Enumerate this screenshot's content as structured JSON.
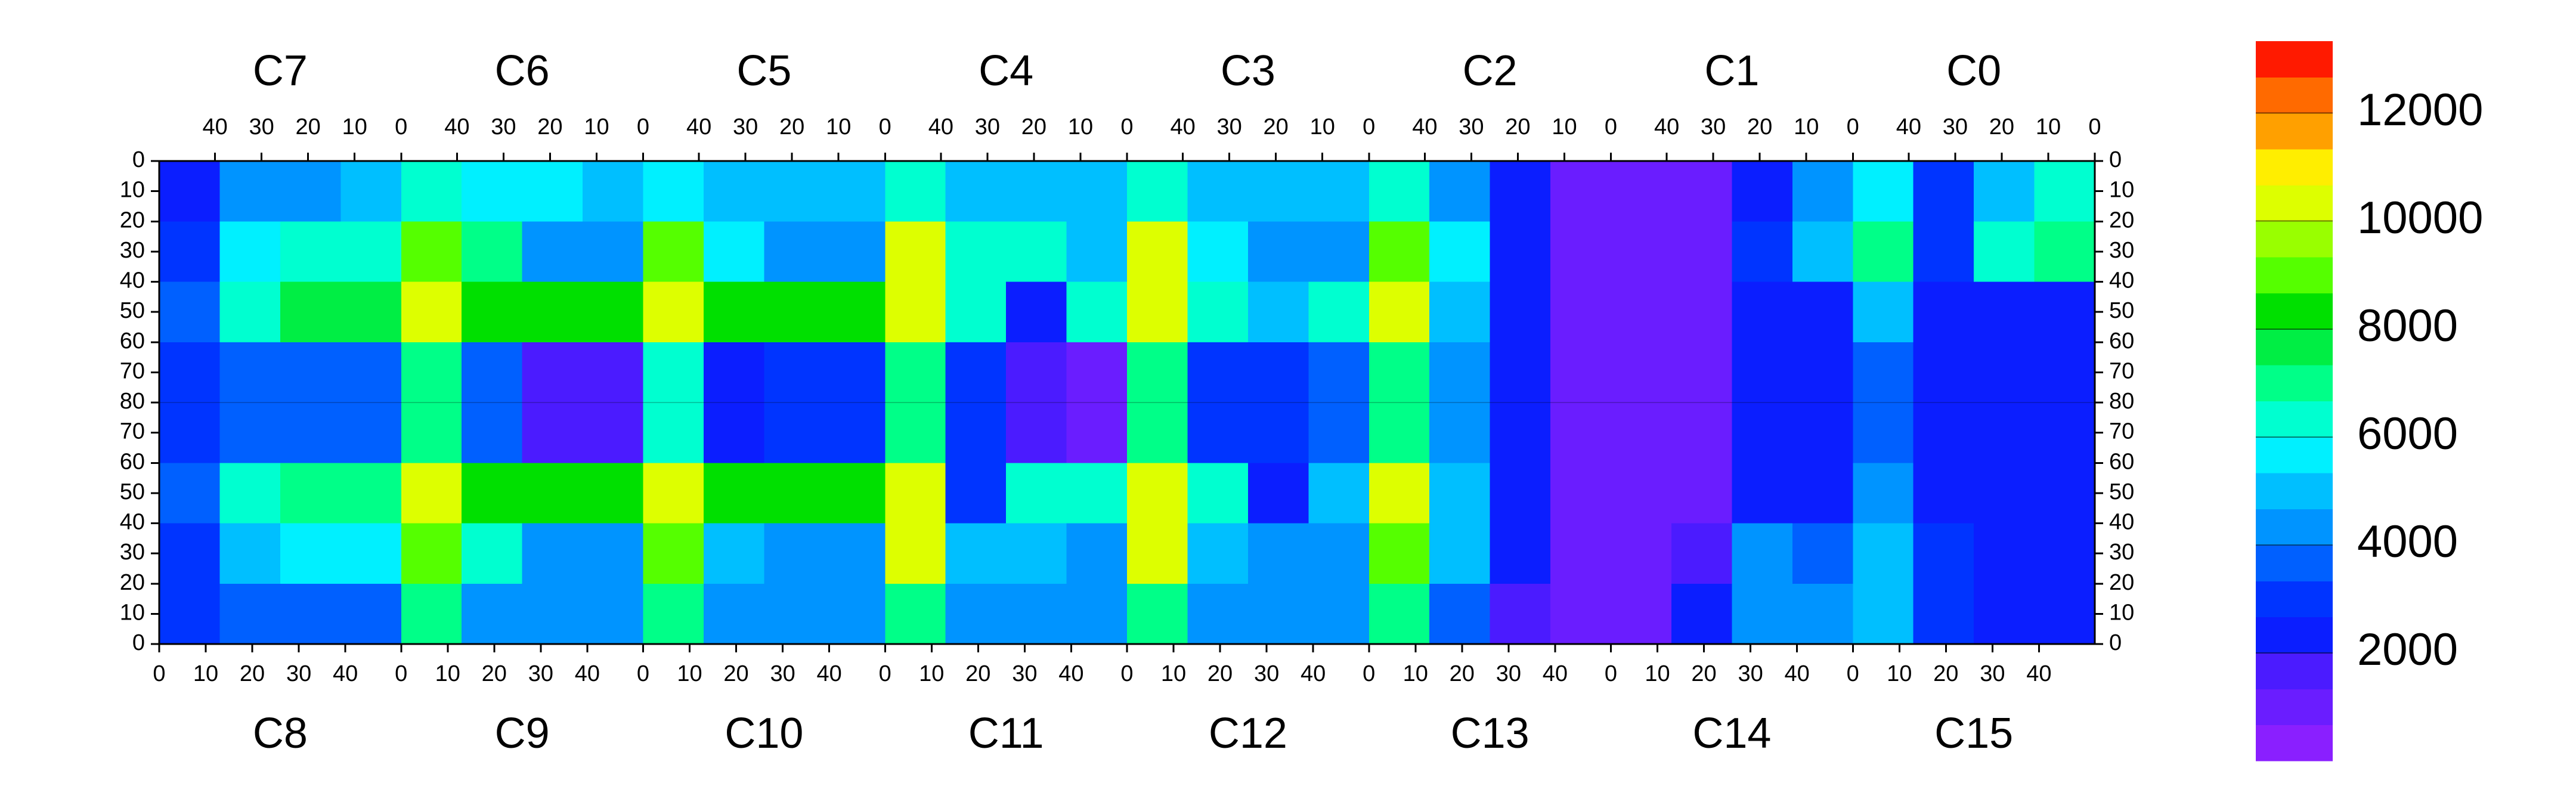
{
  "chart_data": {
    "type": "heatmap",
    "chips_top": [
      "C7",
      "C6",
      "C5",
      "C4",
      "C3",
      "C2",
      "C1",
      "C0"
    ],
    "chips_bottom": [
      "C8",
      "C9",
      "C10",
      "C11",
      "C12",
      "C13",
      "C14",
      "C15"
    ],
    "xlim": [
      0,
      52
    ],
    "xticks_top": [
      40,
      30,
      20,
      10,
      0
    ],
    "xticks_bottom": [
      0,
      10,
      20,
      30,
      40
    ],
    "ylim": [
      0,
      80
    ],
    "yticks": [
      0,
      10,
      20,
      30,
      40,
      50,
      60,
      70,
      80
    ],
    "zlim": [
      0,
      13333
    ],
    "zticks": [
      2000,
      4000,
      6000,
      8000,
      10000,
      12000
    ],
    "colors": [
      "#8a1fff",
      "#6a1dff",
      "#4b1bff",
      "#0b1eff",
      "#0034ff",
      "#0060ff",
      "#0094ff",
      "#00bfff",
      "#00f0ff",
      "#00ffd0",
      "#00ff88",
      "#00ee44",
      "#00e000",
      "#55ff00",
      "#99ff00",
      "#ddff00",
      "#ffee00",
      "#ffa000",
      "#ff6a00",
      "#ff1a00"
    ],
    "z": [
      [
        2500,
        4500,
        4500,
        5000,
        6000,
        5500,
        5500,
        5000,
        5500,
        5000,
        5000,
        5000,
        6000,
        5000,
        5000,
        5000,
        6000,
        5000,
        5000,
        5000,
        6000,
        4500,
        2000,
        1000,
        1000,
        1000,
        2500,
        4000,
        5500,
        3000,
        5000,
        6500
      ],
      [
        3000,
        5500,
        6000,
        6000,
        9000,
        7000,
        4500,
        4500,
        9000,
        5500,
        4500,
        4500,
        10000,
        6000,
        6000,
        5000,
        10000,
        5500,
        4500,
        4500,
        9000,
        5500,
        2500,
        1000,
        1000,
        1000,
        3000,
        5000,
        7000,
        3000,
        6000,
        7000
      ],
      [
        3500,
        6500,
        7500,
        7500,
        10000,
        8000,
        8000,
        8000,
        10000,
        8000,
        8000,
        8000,
        10000,
        6000,
        2000,
        6000,
        10000,
        6000,
        5000,
        6000,
        10000,
        5000,
        2500,
        1000,
        1000,
        1000,
        2500,
        2500,
        5000,
        2000,
        2500,
        2500
      ],
      [
        3000,
        3500,
        3500,
        3500,
        7000,
        3500,
        1500,
        1500,
        6000,
        2500,
        3000,
        3000,
        7000,
        3000,
        1500,
        1000,
        7000,
        3000,
        3000,
        3500,
        7000,
        4500,
        2000,
        1000,
        1000,
        1000,
        2000,
        2500,
        3500,
        2000,
        2000,
        2000
      ],
      [
        3000,
        3500,
        3500,
        3500,
        7000,
        3500,
        1500,
        1500,
        6000,
        2500,
        3000,
        3000,
        7000,
        3000,
        1500,
        1000,
        7000,
        3000,
        3000,
        3500,
        7000,
        4500,
        2000,
        1000,
        1000,
        1000,
        2000,
        2500,
        3500,
        2000,
        2000,
        2000
      ],
      [
        3500,
        6500,
        7000,
        7000,
        10000,
        8000,
        8000,
        8000,
        10000,
        8000,
        8000,
        8000,
        10000,
        3000,
        6000,
        6000,
        10000,
        6000,
        2500,
        5000,
        10000,
        5000,
        2500,
        1000,
        1000,
        1000,
        2500,
        2500,
        4000,
        2000,
        2500,
        2500
      ],
      [
        3000,
        5000,
        5500,
        5500,
        9000,
        6000,
        4000,
        4000,
        9000,
        5000,
        4000,
        4500,
        10000,
        5000,
        5000,
        4500,
        10000,
        5000,
        4500,
        4000,
        9000,
        5000,
        2000,
        1000,
        1000,
        1500,
        4000,
        3500,
        5000,
        3000,
        2500,
        2500
      ],
      [
        3000,
        3500,
        3500,
        3500,
        7000,
        4500,
        4000,
        4000,
        7000,
        4500,
        4000,
        4000,
        7000,
        4500,
        4500,
        4000,
        7000,
        4500,
        4000,
        4000,
        7000,
        3500,
        1500,
        1000,
        1000,
        2500,
        4000,
        4000,
        5000,
        3000,
        2000,
        2000
      ]
    ]
  }
}
